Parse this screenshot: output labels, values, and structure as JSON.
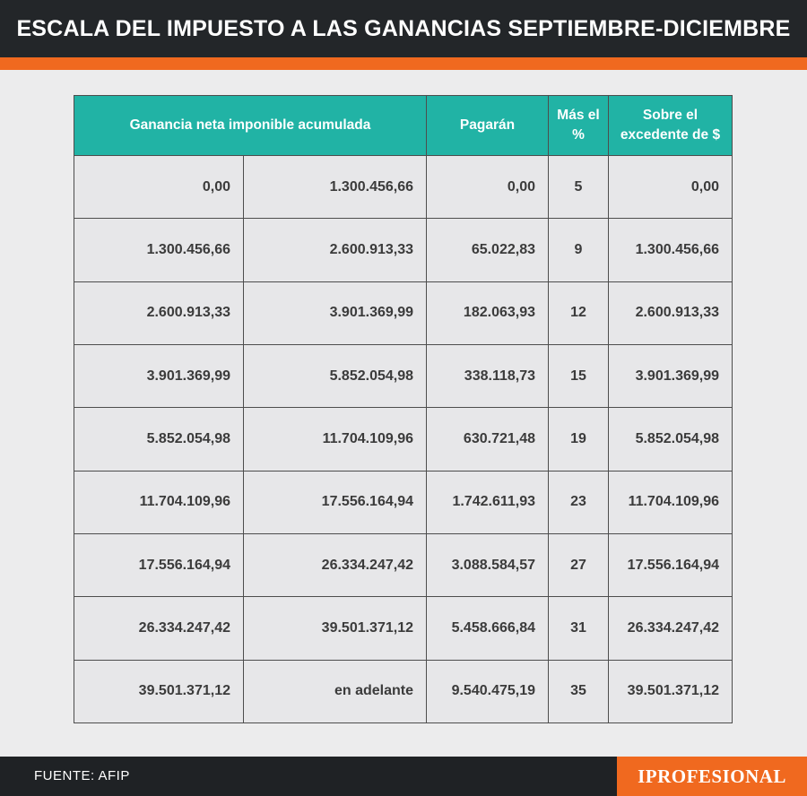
{
  "header": {
    "title": "ESCALA DEL IMPUESTO A LAS GANANCIAS SEPTIEMBRE-DICIEMBRE"
  },
  "table": {
    "headers": {
      "ganancia": "Ganancia neta imponible acumulada",
      "pagaran": "Pagarán",
      "mas_el_pct": "Más el %",
      "sobre_excedente": "Sobre el excedente de $"
    },
    "rows": [
      {
        "desde": "0,00",
        "hasta": "1.300.456,66",
        "pagaran": "0,00",
        "pct": "5",
        "excedente": "0,00"
      },
      {
        "desde": "1.300.456,66",
        "hasta": "2.600.913,33",
        "pagaran": "65.022,83",
        "pct": "9",
        "excedente": "1.300.456,66"
      },
      {
        "desde": "2.600.913,33",
        "hasta": "3.901.369,99",
        "pagaran": "182.063,93",
        "pct": "12",
        "excedente": "2.600.913,33"
      },
      {
        "desde": "3.901.369,99",
        "hasta": "5.852.054,98",
        "pagaran": "338.118,73",
        "pct": "15",
        "excedente": "3.901.369,99"
      },
      {
        "desde": "5.852.054,98",
        "hasta": "11.704.109,96",
        "pagaran": "630.721,48",
        "pct": "19",
        "excedente": "5.852.054,98"
      },
      {
        "desde": "11.704.109,96",
        "hasta": "17.556.164,94",
        "pagaran": "1.742.611,93",
        "pct": "23",
        "excedente": "11.704.109,96"
      },
      {
        "desde": "17.556.164,94",
        "hasta": "26.334.247,42",
        "pagaran": "3.088.584,57",
        "pct": "27",
        "excedente": "17.556.164,94"
      },
      {
        "desde": "26.334.247,42",
        "hasta": "39.501.371,12",
        "pagaran": "5.458.666,84",
        "pct": "31",
        "excedente": "26.334.247,42"
      },
      {
        "desde": "39.501.371,12",
        "hasta": "en adelante",
        "pagaran": "9.540.475,19",
        "pct": "35",
        "excedente": "39.501.371,12"
      }
    ]
  },
  "footer": {
    "source": "FUENTE: AFIP",
    "brand": "IPROFESIONAL"
  },
  "colors": {
    "header_teal": "#21b3a5",
    "accent_orange": "#f0691f",
    "dark_bar": "#232629"
  }
}
